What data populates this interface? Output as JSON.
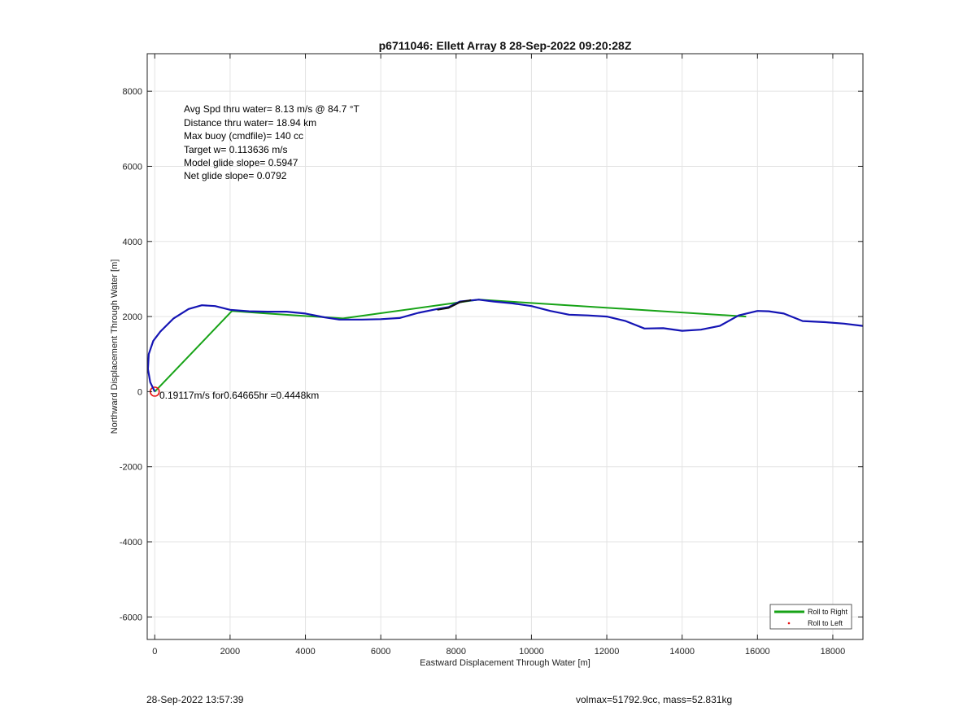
{
  "chart_data": {
    "type": "line",
    "title": "p6711046: Ellett Array 8 28-Sep-2022 09:20:28Z",
    "xlabel": "Eastward Displacement Through Water [m]",
    "ylabel": "Northward Displacement Through Water [m]",
    "xlim": [
      -200,
      18800
    ],
    "ylim": [
      -6600,
      9000
    ],
    "xticks": [
      0,
      2000,
      4000,
      6000,
      8000,
      10000,
      12000,
      14000,
      16000,
      18000
    ],
    "yticks": [
      -6000,
      -4000,
      -2000,
      0,
      2000,
      4000,
      6000,
      8000
    ],
    "grid": true,
    "legend_position": "bottom-right",
    "series": [
      {
        "name": "Roll to Right",
        "color": "#17a317",
        "style": "line",
        "x": [
          0,
          2050,
          3000,
          5000,
          8600,
          15700
        ],
        "y": [
          0,
          2150,
          2080,
          1950,
          2450,
          2000
        ]
      },
      {
        "name": "Roll to Left",
        "color": "#e81010",
        "style": "marker",
        "x": [
          0
        ],
        "y": [
          0
        ]
      },
      {
        "color": "#1414b4",
        "style": "line",
        "x": [
          0,
          -120,
          -180,
          -160,
          -40,
          150,
          500,
          900,
          1250,
          1600,
          2000,
          2500,
          3000,
          3500,
          4000,
          4500,
          4900,
          5500,
          6000,
          6500,
          7000,
          7500,
          7800,
          8100,
          8600,
          9000,
          9500,
          10000,
          10500,
          11000,
          11500,
          12000,
          12500,
          13000,
          13500,
          14000,
          14500,
          15000,
          15500,
          16000,
          16300,
          16700,
          17200,
          17800,
          18300,
          18800
        ],
        "y": [
          0,
          250,
          600,
          1000,
          1350,
          1600,
          1950,
          2200,
          2300,
          2280,
          2180,
          2140,
          2130,
          2130,
          2080,
          1980,
          1920,
          1920,
          1930,
          1960,
          2100,
          2200,
          2250,
          2400,
          2450,
          2400,
          2350,
          2280,
          2150,
          2050,
          2030,
          2000,
          1880,
          1680,
          1690,
          1620,
          1650,
          1750,
          2030,
          2150,
          2140,
          2080,
          1880,
          1850,
          1810,
          1750
        ]
      },
      {
        "color": "#111111",
        "style": "line",
        "x": [
          7500,
          7800,
          8100,
          8400
        ],
        "y": [
          2180,
          2230,
          2380,
          2440
        ]
      }
    ],
    "annotations": [
      "Avg Spd thru water=  8.13 m/s @  84.7 °T",
      "Distance thru water= 18.94 km",
      "Max buoy (cmdfile)= 140 cc",
      "Target w= 0.113636 m/s",
      "Model glide slope= 0.5947",
      "Net glide slope= 0.0792"
    ],
    "current_label": "0.19117m/s for0.64665hr =0.4448km"
  },
  "footer": {
    "timestamp": "28-Sep-2022 13:57:39",
    "params": "volmax=51792.9cc, mass=52.831kg"
  }
}
